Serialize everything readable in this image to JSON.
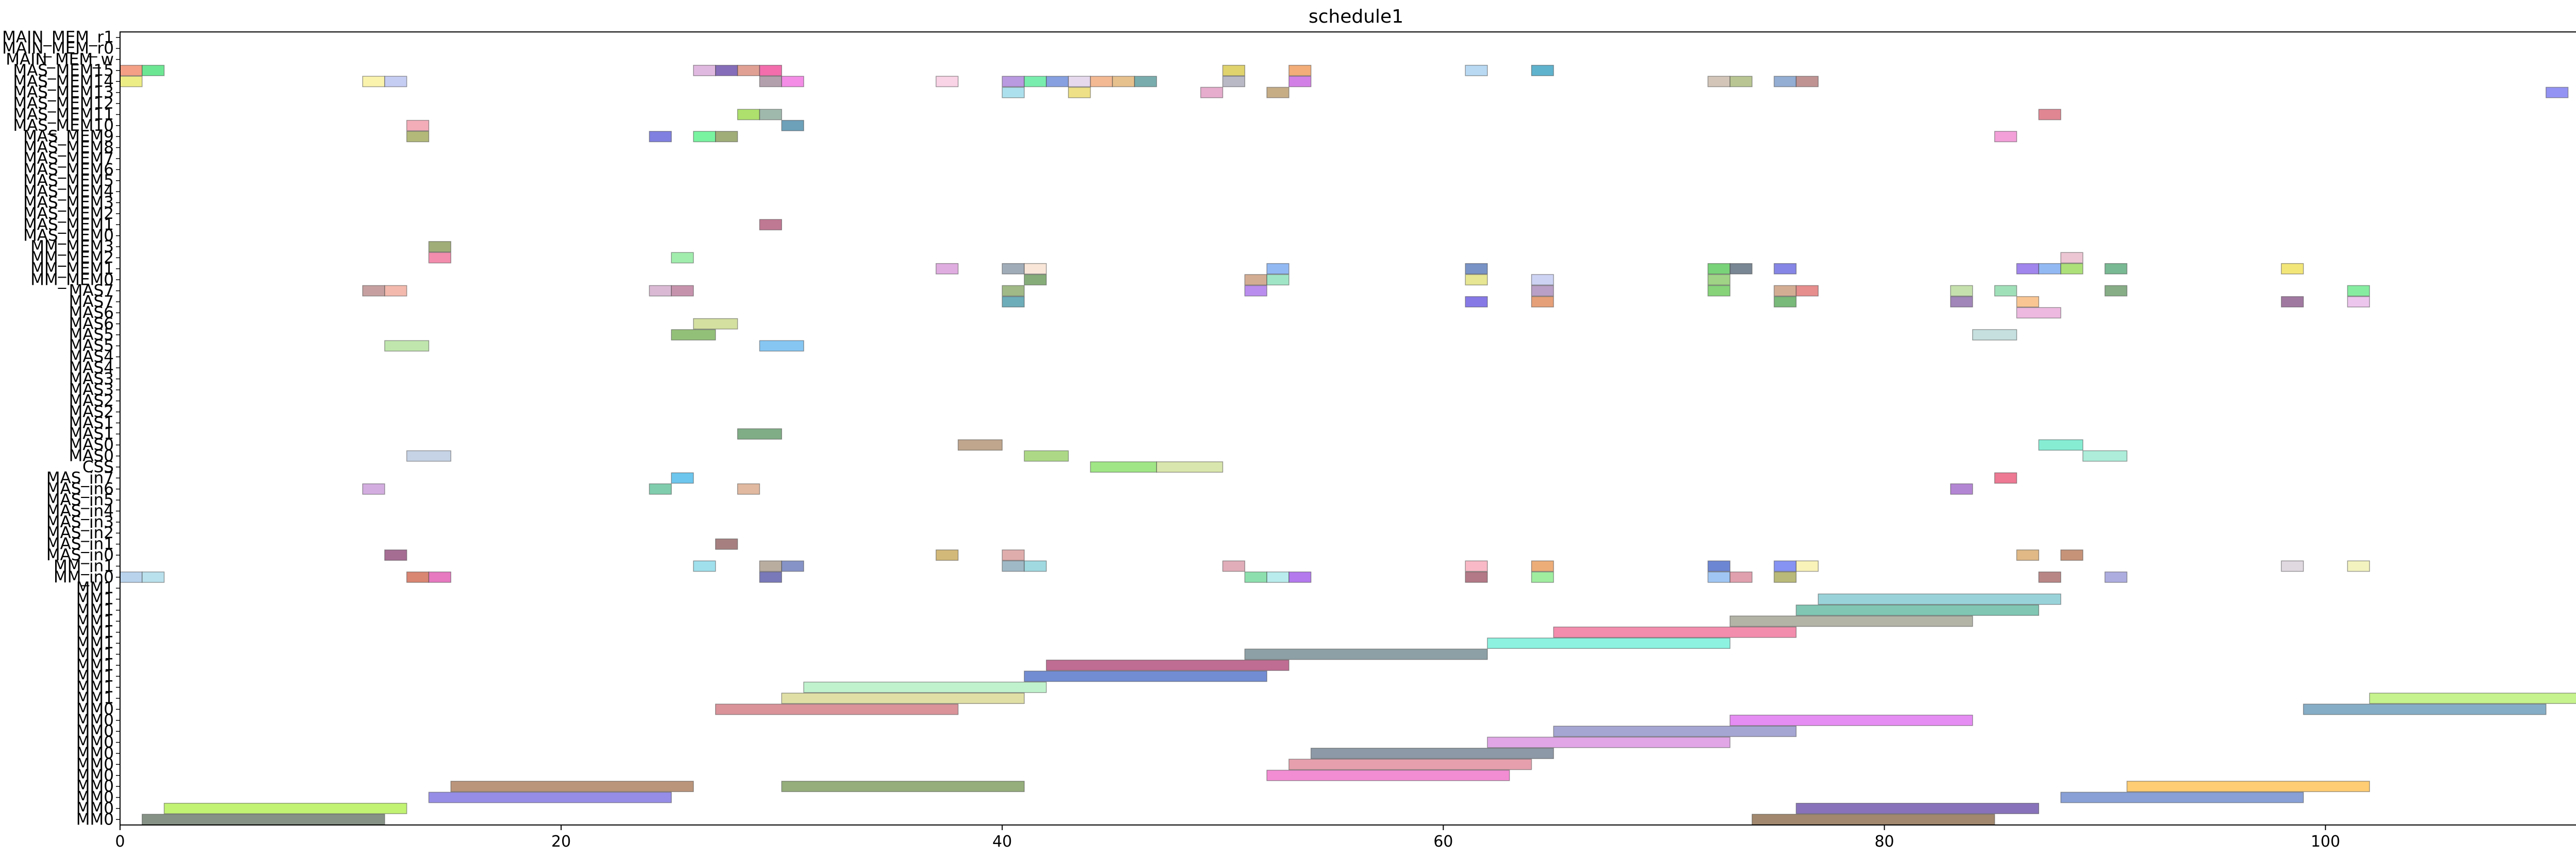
{
  "chart_data": {
    "type": "gantt",
    "title": "schedule1",
    "xlabel": "",
    "ylabel": "",
    "xlim": [
      0,
      114
    ],
    "xticks": [
      0,
      20,
      40,
      60,
      80,
      100
    ],
    "grid": false,
    "rows": [
      "MM0",
      "MM0",
      "MM0",
      "MM0",
      "MM0",
      "MM0",
      "MM0",
      "MM0",
      "MM0",
      "MM0",
      "MM0",
      "MM1",
      "MM1",
      "MM1",
      "MM1",
      "MM1",
      "MM1",
      "MM1",
      "MM1",
      "MM1",
      "MM1",
      "MM1",
      "MM_in0",
      "MM_in1",
      "MAS_in0",
      "MAS_in1",
      "MAS_in2",
      "MAS_in3",
      "MAS_in4",
      "MAS_in5",
      "MAS_in6",
      "MAS_in7",
      "CSS",
      "MAS0",
      "MAS0",
      "MAS1",
      "MAS1",
      "MAS2",
      "MAS2",
      "MAS3",
      "MAS3",
      "MAS4",
      "MAS4",
      "MAS5",
      "MAS5",
      "MAS6",
      "MAS6",
      "MAS7",
      "MAS7",
      "MM_MEM0",
      "MM_MEM1",
      "MM_MEM2",
      "MM_MEM3",
      "MAS_MEM0",
      "MAS_MEM1",
      "MAS_MEM2",
      "MAS_MEM3",
      "MAS_MEM4",
      "MAS_MEM5",
      "MAS_MEM6",
      "MAS_MEM7",
      "MAS_MEM8",
      "MAS_MEM9",
      "MAS_MEM10",
      "MAS_MEM11",
      "MAS_MEM12",
      "MAS_MEM13",
      "MAS_MEM14",
      "MAS_MEM15",
      "MAIN_MEM_w",
      "MAIN_MEM_r0",
      "MAIN_MEM_r1"
    ],
    "tasks": [
      {
        "row": 0,
        "start": 1,
        "end": 12,
        "color": "#667766"
      },
      {
        "row": 0,
        "start": 74,
        "end": 85,
        "color": "#8a6a4a"
      },
      {
        "row": 1,
        "start": 2,
        "end": 13,
        "color": "#b3f050"
      },
      {
        "row": 1,
        "start": 76,
        "end": 87,
        "color": "#6a50aa"
      },
      {
        "row": 2,
        "start": 14,
        "end": 25,
        "color": "#7a70e0"
      },
      {
        "row": 2,
        "start": 88,
        "end": 99,
        "color": "#6a88cc"
      },
      {
        "row": 3,
        "start": 15,
        "end": 26,
        "color": "#aa7a5a"
      },
      {
        "row": 3,
        "start": 30,
        "end": 41,
        "color": "#7a9a5a"
      },
      {
        "row": 3,
        "start": 91,
        "end": 102,
        "color": "#ffc050"
      },
      {
        "row": 4,
        "start": 52,
        "end": 63,
        "color": "#f070c8"
      },
      {
        "row": 5,
        "start": 53,
        "end": 64,
        "color": "#e08898"
      },
      {
        "row": 6,
        "start": 54,
        "end": 65,
        "color": "#708090"
      },
      {
        "row": 7,
        "start": 62,
        "end": 73,
        "color": "#d890e0"
      },
      {
        "row": 8,
        "start": 65,
        "end": 76,
        "color": "#9090c8"
      },
      {
        "row": 9,
        "start": 73,
        "end": 84,
        "color": "#e070f0"
      },
      {
        "row": 10,
        "start": 27,
        "end": 38,
        "color": "#d07880"
      },
      {
        "row": 10,
        "start": 99,
        "end": 110,
        "color": "#6898b8"
      },
      {
        "row": 11,
        "start": 30,
        "end": 41,
        "color": "#d8d890"
      },
      {
        "row": 11,
        "start": 102,
        "end": 113,
        "color": "#b8f070"
      },
      {
        "row": 12,
        "start": 31,
        "end": 42,
        "color": "#b0f0c0"
      },
      {
        "row": 13,
        "start": 41,
        "end": 52,
        "color": "#5070c8"
      },
      {
        "row": 14,
        "start": 42,
        "end": 53,
        "color": "#b04878"
      },
      {
        "row": 15,
        "start": 51,
        "end": 62,
        "color": "#708890"
      },
      {
        "row": 16,
        "start": 62,
        "end": 73,
        "color": "#70f0d8"
      },
      {
        "row": 17,
        "start": 65,
        "end": 76,
        "color": "#f07098"
      },
      {
        "row": 18,
        "start": 73,
        "end": 84,
        "color": "#a0a090"
      },
      {
        "row": 19,
        "start": 76,
        "end": 87,
        "color": "#60b8a0"
      },
      {
        "row": 20,
        "start": 77,
        "end": 88,
        "color": "#80c8d0"
      },
      {
        "row": 22,
        "start": 0,
        "end": 1,
        "color": "#a8c8e8"
      },
      {
        "row": 22,
        "start": 1,
        "end": 2,
        "color": "#a8d8e8"
      },
      {
        "row": 22,
        "start": 13,
        "end": 14,
        "color": "#d06850"
      },
      {
        "row": 22,
        "start": 14,
        "end": 15,
        "color": "#e058b0"
      },
      {
        "row": 22,
        "start": 29,
        "end": 30,
        "color": "#5858a8"
      },
      {
        "row": 22,
        "start": 51,
        "end": 52,
        "color": "#70d898"
      },
      {
        "row": 22,
        "start": 52,
        "end": 53,
        "color": "#a8e8e8"
      },
      {
        "row": 22,
        "start": 53,
        "end": 54,
        "color": "#a058e8"
      },
      {
        "row": 22,
        "start": 61,
        "end": 62,
        "color": "#a05868"
      },
      {
        "row": 22,
        "start": 64,
        "end": 65,
        "color": "#88e888"
      },
      {
        "row": 22,
        "start": 72,
        "end": 73,
        "color": "#88b8f0"
      },
      {
        "row": 22,
        "start": 73,
        "end": 74,
        "color": "#d88898"
      },
      {
        "row": 22,
        "start": 75,
        "end": 76,
        "color": "#a8a858"
      },
      {
        "row": 22,
        "start": 87,
        "end": 88,
        "color": "#a86868"
      },
      {
        "row": 22,
        "start": 90,
        "end": 91,
        "color": "#9898d8"
      },
      {
        "row": 23,
        "start": 26,
        "end": 27,
        "color": "#88d8e8"
      },
      {
        "row": 23,
        "start": 29,
        "end": 30,
        "color": "#a89888"
      },
      {
        "row": 23,
        "start": 30,
        "end": 31,
        "color": "#6878b8"
      },
      {
        "row": 23,
        "start": 40,
        "end": 41,
        "color": "#88a8b8"
      },
      {
        "row": 23,
        "start": 41,
        "end": 42,
        "color": "#88d0d8"
      },
      {
        "row": 23,
        "start": 50,
        "end": 51,
        "color": "#d898a8"
      },
      {
        "row": 23,
        "start": 61,
        "end": 62,
        "color": "#f8a8b8"
      },
      {
        "row": 23,
        "start": 64,
        "end": 65,
        "color": "#e89858"
      },
      {
        "row": 23,
        "start": 72,
        "end": 73,
        "color": "#4868c8"
      },
      {
        "row": 23,
        "start": 75,
        "end": 76,
        "color": "#6878f0"
      },
      {
        "row": 23,
        "start": 76,
        "end": 77,
        "color": "#f8f0a8"
      },
      {
        "row": 23,
        "start": 98,
        "end": 99,
        "color": "#d8d0d8"
      },
      {
        "row": 23,
        "start": 101,
        "end": 102,
        "color": "#f0f0b0"
      },
      {
        "row": 24,
        "start": 12,
        "end": 13,
        "color": "#904878"
      },
      {
        "row": 24,
        "start": 37,
        "end": 38,
        "color": "#c8a858"
      },
      {
        "row": 24,
        "start": 40,
        "end": 41,
        "color": "#d89898"
      },
      {
        "row": 24,
        "start": 86,
        "end": 87,
        "color": "#d8a868"
      },
      {
        "row": 24,
        "start": 88,
        "end": 89,
        "color": "#b87858"
      },
      {
        "row": 25,
        "start": 27,
        "end": 28,
        "color": "#906060"
      },
      {
        "row": 30,
        "start": 11,
        "end": 12,
        "color": "#c898d8"
      },
      {
        "row": 30,
        "start": 24,
        "end": 25,
        "color": "#60c098"
      },
      {
        "row": 30,
        "start": 28,
        "end": 29,
        "color": "#d8a888"
      },
      {
        "row": 30,
        "start": 83,
        "end": 84,
        "color": "#a068c8"
      },
      {
        "row": 31,
        "start": 25,
        "end": 26,
        "color": "#48b8e8"
      },
      {
        "row": 31,
        "start": 85,
        "end": 86,
        "color": "#e85878"
      },
      {
        "row": 32,
        "start": 44,
        "end": 47,
        "color": "#88e068"
      },
      {
        "row": 32,
        "start": 47,
        "end": 50,
        "color": "#d0e098"
      },
      {
        "row": 33,
        "start": 13,
        "end": 15,
        "color": "#b8c8e0"
      },
      {
        "row": 33,
        "start": 41,
        "end": 43,
        "color": "#98d068"
      },
      {
        "row": 33,
        "start": 89,
        "end": 91,
        "color": "#98e8d0"
      },
      {
        "row": 34,
        "start": 38,
        "end": 40,
        "color": "#b09070"
      },
      {
        "row": 34,
        "start": 87,
        "end": 89,
        "color": "#68e8c8"
      },
      {
        "row": 35,
        "start": 28,
        "end": 30,
        "color": "#609868"
      },
      {
        "row": 43,
        "start": 12,
        "end": 14,
        "color": "#b0e098"
      },
      {
        "row": 43,
        "start": 29,
        "end": 31,
        "color": "#68b8f0"
      },
      {
        "row": 44,
        "start": 25,
        "end": 27,
        "color": "#78b058"
      },
      {
        "row": 44,
        "start": 84,
        "end": 86,
        "color": "#b8d8d8"
      },
      {
        "row": 45,
        "start": 26,
        "end": 28,
        "color": "#c8d888"
      },
      {
        "row": 46,
        "start": 86,
        "end": 88,
        "color": "#e8a8d8"
      },
      {
        "row": 47,
        "start": 40,
        "end": 41,
        "color": "#4898a8"
      },
      {
        "row": 47,
        "start": 61,
        "end": 62,
        "color": "#6858e0"
      },
      {
        "row": 47,
        "start": 64,
        "end": 65,
        "color": "#e08858"
      },
      {
        "row": 47,
        "start": 83,
        "end": 84,
        "color": "#8868a8"
      },
      {
        "row": 47,
        "start": 86,
        "end": 87,
        "color": "#f8b878"
      },
      {
        "row": 47,
        "start": 75,
        "end": 76,
        "color": "#58a858"
      },
      {
        "row": 47,
        "start": 98,
        "end": 99,
        "color": "#885888"
      },
      {
        "row": 47,
        "start": 101,
        "end": 102,
        "color": "#e8b8e8"
      },
      {
        "row": 48,
        "start": 11,
        "end": 12,
        "color": "#b88888"
      },
      {
        "row": 48,
        "start": 12,
        "end": 13,
        "color": "#f0a898"
      },
      {
        "row": 48,
        "start": 24,
        "end": 25,
        "color": "#d0a8c8"
      },
      {
        "row": 48,
        "start": 25,
        "end": 26,
        "color": "#b87898"
      },
      {
        "row": 48,
        "start": 40,
        "end": 41,
        "color": "#88a868"
      },
      {
        "row": 48,
        "start": 51,
        "end": 52,
        "color": "#a870e8"
      },
      {
        "row": 48,
        "start": 64,
        "end": 65,
        "color": "#a888b8"
      },
      {
        "row": 48,
        "start": 72,
        "end": 73,
        "color": "#68c858"
      },
      {
        "row": 48,
        "start": 75,
        "end": 76,
        "color": "#c89878"
      },
      {
        "row": 48,
        "start": 76,
        "end": 77,
        "color": "#e07070"
      },
      {
        "row": 48,
        "start": 83,
        "end": 84,
        "color": "#b8d898"
      },
      {
        "row": 48,
        "start": 85,
        "end": 86,
        "color": "#88d8a8"
      },
      {
        "row": 48,
        "start": 90,
        "end": 91,
        "color": "#689868"
      },
      {
        "row": 48,
        "start": 101,
        "end": 102,
        "color": "#68e888"
      },
      {
        "row": 49,
        "start": 41,
        "end": 42,
        "color": "#689858"
      },
      {
        "row": 49,
        "start": 51,
        "end": 52,
        "color": "#c89878"
      },
      {
        "row": 49,
        "start": 52,
        "end": 53,
        "color": "#88e0b8"
      },
      {
        "row": 49,
        "start": 61,
        "end": 62,
        "color": "#e0e078"
      },
      {
        "row": 49,
        "start": 64,
        "end": 65,
        "color": "#c0c8f0"
      },
      {
        "row": 49,
        "start": 72,
        "end": 73,
        "color": "#88c868"
      },
      {
        "row": 50,
        "start": 37,
        "end": 38,
        "color": "#d898d8"
      },
      {
        "row": 50,
        "start": 40,
        "end": 41,
        "color": "#8898a8"
      },
      {
        "row": 50,
        "start": 41,
        "end": 42,
        "color": "#f8e0d0"
      },
      {
        "row": 50,
        "start": 52,
        "end": 53,
        "color": "#78a8f0"
      },
      {
        "row": 50,
        "start": 61,
        "end": 62,
        "color": "#5878b8"
      },
      {
        "row": 50,
        "start": 72,
        "end": 73,
        "color": "#58c858"
      },
      {
        "row": 50,
        "start": 73,
        "end": 74,
        "color": "#586878"
      },
      {
        "row": 50,
        "start": 75,
        "end": 76,
        "color": "#6868e0"
      },
      {
        "row": 50,
        "start": 86,
        "end": 87,
        "color": "#8868e8"
      },
      {
        "row": 50,
        "start": 87,
        "end": 88,
        "color": "#78a8f0"
      },
      {
        "row": 50,
        "start": 88,
        "end": 89,
        "color": "#98d858"
      },
      {
        "row": 50,
        "start": 90,
        "end": 91,
        "color": "#58a878"
      },
      {
        "row": 50,
        "start": 98,
        "end": 99,
        "color": "#f0e058"
      },
      {
        "row": 51,
        "start": 14,
        "end": 15,
        "color": "#f07098"
      },
      {
        "row": 51,
        "start": 25,
        "end": 26,
        "color": "#88e898"
      },
      {
        "row": 51,
        "start": 88,
        "end": 89,
        "color": "#e8b8c8"
      },
      {
        "row": 52,
        "start": 14,
        "end": 15,
        "color": "#889858"
      },
      {
        "row": 54,
        "start": 29,
        "end": 30,
        "color": "#b05878"
      },
      {
        "row": 62,
        "start": 13,
        "end": 14,
        "color": "#a0a858"
      },
      {
        "row": 62,
        "start": 24,
        "end": 25,
        "color": "#6060d8"
      },
      {
        "row": 62,
        "start": 26,
        "end": 27,
        "color": "#58f088"
      },
      {
        "row": 62,
        "start": 27,
        "end": 28,
        "color": "#889858"
      },
      {
        "row": 62,
        "start": 85,
        "end": 86,
        "color": "#f088d0"
      },
      {
        "row": 63,
        "start": 13,
        "end": 14,
        "color": "#f098a8"
      },
      {
        "row": 63,
        "start": 30,
        "end": 31,
        "color": "#4888a8"
      },
      {
        "row": 64,
        "start": 28,
        "end": 29,
        "color": "#98d848"
      },
      {
        "row": 64,
        "start": 29,
        "end": 30,
        "color": "#88a898"
      },
      {
        "row": 64,
        "start": 87,
        "end": 88,
        "color": "#d86878"
      },
      {
        "row": 66,
        "start": 40,
        "end": 41,
        "color": "#98d8e8"
      },
      {
        "row": 66,
        "start": 43,
        "end": 44,
        "color": "#e8d868"
      },
      {
        "row": 66,
        "start": 49,
        "end": 50,
        "color": "#e098c0"
      },
      {
        "row": 66,
        "start": 52,
        "end": 53,
        "color": "#b89868"
      },
      {
        "row": 66,
        "start": 110,
        "end": 111,
        "color": "#7878f0"
      },
      {
        "row": 66,
        "start": 113,
        "end": 114,
        "color": "#889858"
      },
      {
        "row": 67,
        "start": 0,
        "end": 1,
        "color": "#e8e868"
      },
      {
        "row": 67,
        "start": 11,
        "end": 12,
        "color": "#f8f098"
      },
      {
        "row": 67,
        "start": 12,
        "end": 13,
        "color": "#b8c0f0"
      },
      {
        "row": 67,
        "start": 29,
        "end": 30,
        "color": "#a08898"
      },
      {
        "row": 67,
        "start": 30,
        "end": 31,
        "color": "#f070e0"
      },
      {
        "row": 67,
        "start": 37,
        "end": 38,
        "color": "#f8c8e0"
      },
      {
        "row": 67,
        "start": 40,
        "end": 41,
        "color": "#a880d8"
      },
      {
        "row": 67,
        "start": 41,
        "end": 42,
        "color": "#58e898"
      },
      {
        "row": 67,
        "start": 42,
        "end": 43,
        "color": "#6888d8"
      },
      {
        "row": 67,
        "start": 43,
        "end": 44,
        "color": "#e0d0e8"
      },
      {
        "row": 67,
        "start": 44,
        "end": 45,
        "color": "#f0a878"
      },
      {
        "row": 67,
        "start": 45,
        "end": 46,
        "color": "#e0b070"
      },
      {
        "row": 67,
        "start": 46,
        "end": 47,
        "color": "#589898"
      },
      {
        "row": 67,
        "start": 50,
        "end": 51,
        "color": "#a8a8b8"
      },
      {
        "row": 67,
        "start": 53,
        "end": 54,
        "color": "#c860e0"
      },
      {
        "row": 67,
        "start": 72,
        "end": 73,
        "color": "#c8b8a8"
      },
      {
        "row": 67,
        "start": 73,
        "end": 74,
        "color": "#a8b878"
      },
      {
        "row": 67,
        "start": 75,
        "end": 76,
        "color": "#7898c8"
      },
      {
        "row": 67,
        "start": 76,
        "end": 77,
        "color": "#b07878"
      },
      {
        "row": 68,
        "start": 0,
        "end": 1,
        "color": "#f08868"
      },
      {
        "row": 68,
        "start": 1,
        "end": 2,
        "color": "#48e078"
      },
      {
        "row": 68,
        "start": 26,
        "end": 27,
        "color": "#d8a8d8"
      },
      {
        "row": 68,
        "start": 27,
        "end": 28,
        "color": "#6848a8"
      },
      {
        "row": 68,
        "start": 28,
        "end": 29,
        "color": "#d88878"
      },
      {
        "row": 68,
        "start": 29,
        "end": 30,
        "color": "#f04898"
      },
      {
        "row": 68,
        "start": 50,
        "end": 51,
        "color": "#d8c848"
      },
      {
        "row": 68,
        "start": 53,
        "end": 54,
        "color": "#f09858"
      },
      {
        "row": 68,
        "start": 61,
        "end": 62,
        "color": "#a8d0f0"
      },
      {
        "row": 68,
        "start": 64,
        "end": 65,
        "color": "#38a0c0"
      }
    ]
  }
}
